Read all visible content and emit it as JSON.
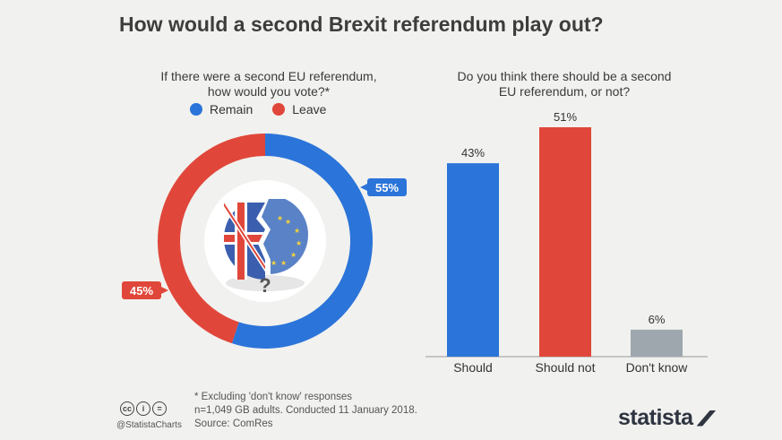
{
  "title": "How would a second Brexit referendum play out?",
  "chart_data": [
    {
      "type": "pie",
      "variant": "donut",
      "title": "If there were a second EU referendum, how would you vote?*",
      "title_lines": [
        "If there were a second EU referendum,",
        "how would you vote?*"
      ],
      "categories": [
        "Remain",
        "Leave"
      ],
      "values": [
        55,
        45
      ],
      "labels": [
        "55%",
        "45%"
      ],
      "colors": [
        "#2b74d9",
        "#e0473a"
      ],
      "legend": [
        "Remain",
        "Leave"
      ]
    },
    {
      "type": "bar",
      "title": "Do you think there should be a second EU referendum, or not?",
      "title_lines": [
        "Do you think there should be a second",
        "EU referendum, or not?"
      ],
      "categories": [
        "Should",
        "Should not",
        "Don't know"
      ],
      "values": [
        43,
        51,
        6
      ],
      "labels": [
        "43%",
        "51%",
        "6%"
      ],
      "colors": [
        "#2b74d9",
        "#e0473a",
        "#9ea7ae"
      ],
      "ylim": [
        0,
        51
      ],
      "xlabel": "",
      "ylabel": ""
    }
  ],
  "footer": {
    "note": "* Excluding 'don't know' responses",
    "sample": "n=1,049 GB adults. Conducted 11 January 2018.",
    "source": "Source: ComRes",
    "handle": "@StatistaCharts",
    "brand": "statista",
    "cc_icons": [
      "cc",
      "i",
      "="
    ]
  },
  "center_glyph": "?"
}
